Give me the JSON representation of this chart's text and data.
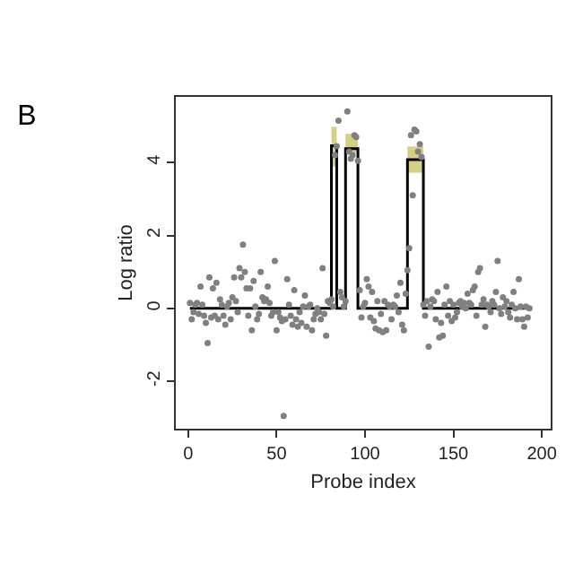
{
  "chart_data": {
    "type": "scatter",
    "title": "B",
    "xlabel": "Probe index",
    "ylabel": "Log ratio",
    "xlim": [
      -7,
      205
    ],
    "ylim": [
      -3.3,
      5.8
    ],
    "xticks": [
      0,
      50,
      100,
      150,
      200
    ],
    "yticks": [
      -2,
      0,
      2,
      4
    ],
    "marker": "circle",
    "series": [
      {
        "type": "line",
        "color": "#000000",
        "line_style": "solid",
        "marker": "none",
        "x": [
          1,
          81,
          81,
          84,
          84,
          89,
          89,
          96,
          96,
          124,
          124,
          133,
          133,
          193
        ],
        "values": [
          0,
          0,
          4.46,
          4.46,
          0,
          0,
          4.38,
          4.38,
          0,
          0,
          4.08,
          4.08,
          0,
          0
        ],
        "lower": [
          null,
          null,
          3.89,
          3.89,
          null,
          null,
          4.26,
          4.26,
          null,
          null,
          3.72,
          3.72,
          null,
          null
        ],
        "upper": [
          null,
          null,
          4.98,
          4.98,
          null,
          null,
          4.79,
          4.79,
          null,
          null,
          4.44,
          4.44,
          null,
          null
        ]
      },
      {
        "color": "#808080",
        "x": [
          1,
          2,
          3,
          4,
          5,
          6,
          7,
          8,
          9,
          10,
          11,
          12,
          13,
          14,
          15,
          16,
          17,
          18,
          19,
          20,
          21,
          22,
          23,
          24,
          25,
          26,
          27,
          28,
          29,
          30,
          31,
          32,
          33,
          34,
          35,
          36,
          37,
          38,
          39,
          40,
          41,
          42,
          43,
          44,
          45,
          46,
          47,
          48,
          49,
          50,
          51,
          52,
          53,
          54,
          55,
          56,
          57,
          58,
          59,
          60,
          61,
          62,
          63,
          64,
          65,
          66,
          67,
          68,
          69,
          70,
          71,
          72,
          73,
          74,
          75,
          76,
          77,
          78,
          79,
          80,
          81,
          82,
          83,
          84,
          85,
          86,
          87,
          88,
          89,
          90,
          91,
          92,
          93,
          94,
          95,
          96,
          97,
          98,
          99,
          100,
          101,
          102,
          103,
          104,
          105,
          106,
          107,
          108,
          109,
          110,
          111,
          112,
          113,
          114,
          115,
          116,
          117,
          118,
          119,
          120,
          121,
          122,
          123,
          124,
          125,
          126,
          127,
          128,
          129,
          130,
          131,
          132,
          133,
          134,
          135,
          136,
          137,
          138,
          139,
          140,
          141,
          142,
          143,
          144,
          145,
          146,
          147,
          148,
          149,
          150,
          151,
          152,
          153,
          154,
          155,
          156,
          157,
          158,
          159,
          160,
          161,
          162,
          163,
          164,
          165,
          166,
          167,
          168,
          169,
          170,
          171,
          172,
          173,
          174,
          175,
          176,
          177,
          178,
          179,
          180,
          181,
          182,
          183,
          184,
          185,
          186,
          187,
          188,
          189,
          190,
          191,
          192,
          193
        ],
        "values": [
          0.15,
          -0.3,
          -0.1,
          0.1,
          0.15,
          -0.15,
          0.6,
          0.1,
          -0.2,
          -0.4,
          -0.95,
          0.85,
          -0.25,
          0.55,
          -0.2,
          0.7,
          -0.3,
          0.25,
          0.1,
          -0.2,
          -0.45,
          0.05,
          0.15,
          -0.3,
          0.3,
          0.85,
          0.2,
          -0.1,
          1.1,
          0.85,
          1.75,
          1.0,
          0.55,
          -0.2,
          0.55,
          -0.6,
          0.75,
          0.05,
          -0.3,
          -0.15,
          1.0,
          0.3,
          0.2,
          0.25,
          0.6,
          0.15,
          -0.2,
          -0.1,
          1.3,
          -0.6,
          -0.1,
          -0.25,
          -0.35,
          -2.95,
          -0.3,
          0.8,
          0.1,
          -0.2,
          -0.45,
          0.5,
          -0.3,
          -0.5,
          -0.1,
          -0.4,
          0.05,
          0.35,
          -0.5,
          0.05,
          0.1,
          -0.6,
          -0.3,
          -0.15,
          0.0,
          -0.1,
          -0.3,
          1.1,
          -0.15,
          -0.75,
          0.2,
          0.15,
          0.25,
          0.05,
          4.2,
          4.45,
          5.15,
          0.45,
          0.3,
          0.05,
          0.2,
          5.4,
          4.3,
          4.1,
          4.2,
          4.75,
          4.7,
          4.05,
          0.5,
          -0.25,
          0.05,
          0.15,
          0.8,
          0.6,
          -0.25,
          0.45,
          -0.35,
          -0.55,
          0.2,
          -0.6,
          -0.15,
          -0.65,
          0.2,
          -0.6,
          0.1,
          0.05,
          -0.3,
          0.1,
          0.05,
          0.35,
          -0.1,
          0.7,
          -0.45,
          -0.6,
          0.4,
          1.05,
          1.65,
          4.75,
          3.1,
          4.9,
          4.85,
          4.3,
          4.5,
          4.15,
          0.1,
          -0.2,
          0.2,
          -1.05,
          0.05,
          0.25,
          0.2,
          -0.3,
          0.45,
          -0.8,
          -0.4,
          -0.75,
          0.1,
          0.6,
          -0.2,
          0.2,
          -0.35,
          0.1,
          -0.25,
          -0.1,
          0.15,
          0.2,
          0.05,
          0.15,
          0.0,
          0.4,
          0.15,
          0.1,
          0.5,
          0.6,
          -0.2,
          1.0,
          1.1,
          0.1,
          0.25,
          -0.5,
          0.1,
          0.05,
          -0.1,
          0.2,
          0.1,
          0.45,
          1.3,
          0.0,
          -0.15,
          0.3,
          0.05,
          0.2,
          -0.1,
          -0.25,
          0.1,
          0.45,
          0.0,
          -0.3,
          0.8,
          0.05,
          -0.3,
          -0.5,
          0.05,
          -0.25,
          0.0
        ]
      }
    ]
  }
}
